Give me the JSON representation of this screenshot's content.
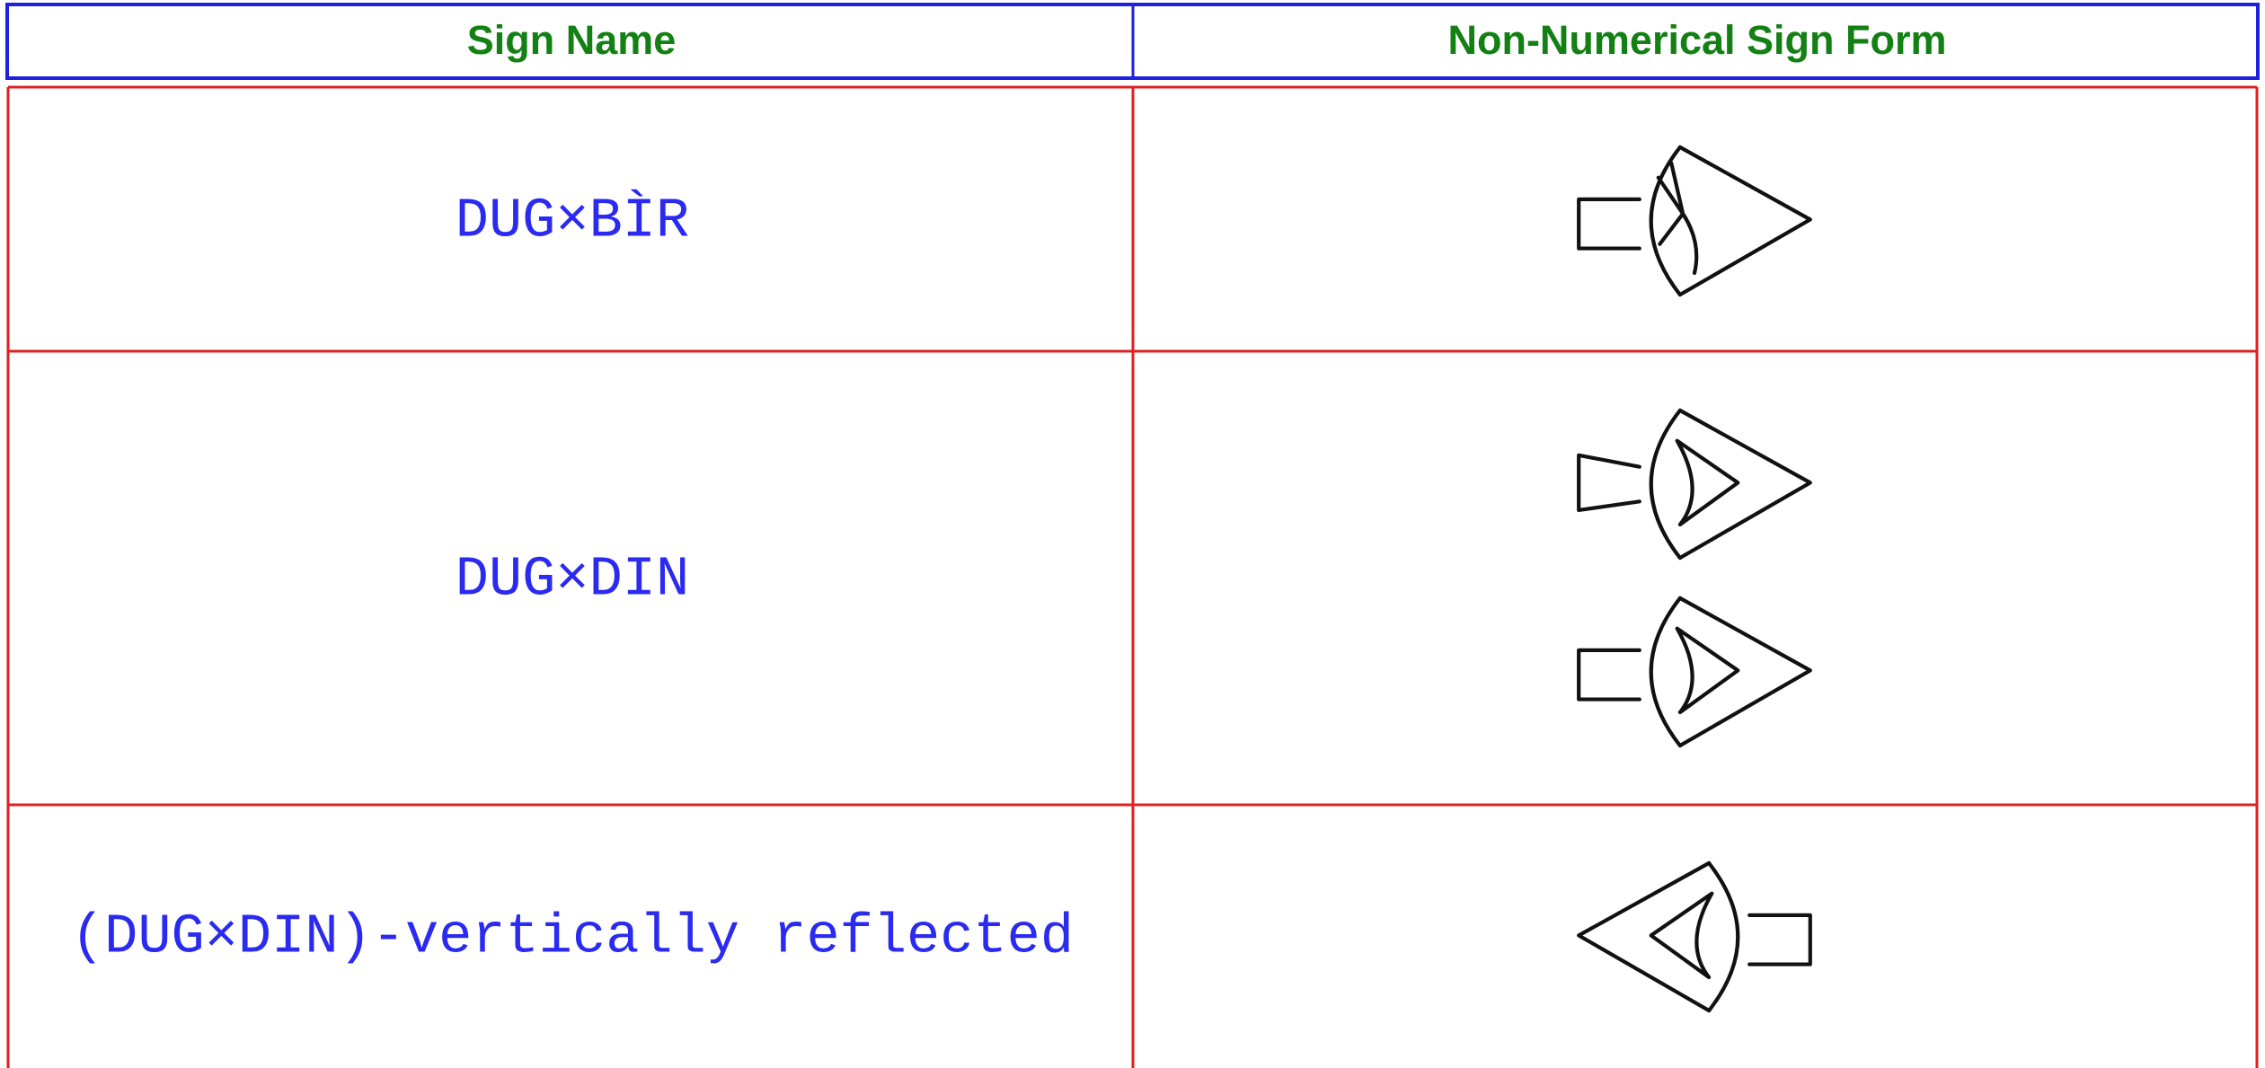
{
  "table": {
    "headers": [
      "Sign Name",
      "Non-Numerical Sign Form"
    ],
    "rows": [
      [
        "DUG×BÌR"
      ],
      [
        "DUG×DIN"
      ],
      [
        "(DUG×DIN)-vertically reflected"
      ]
    ]
  }
}
